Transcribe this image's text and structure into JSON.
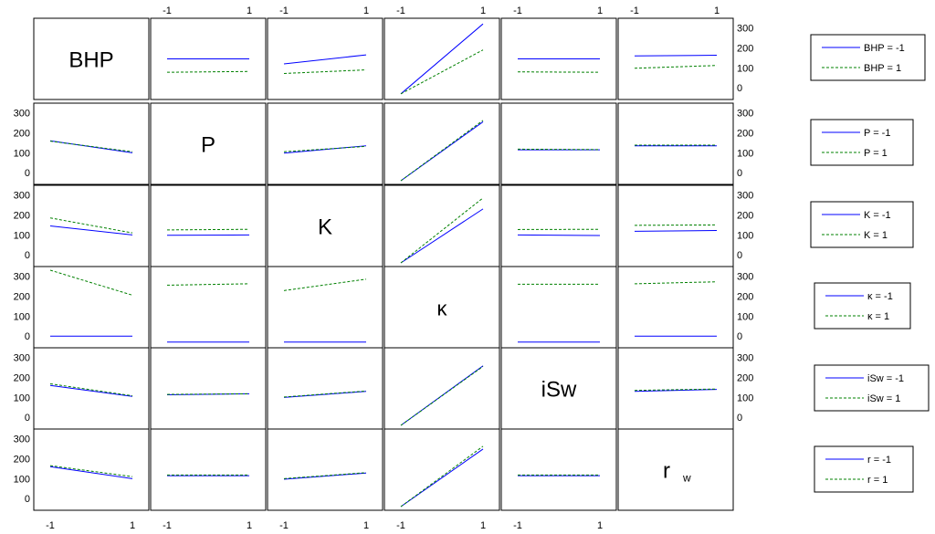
{
  "chart_data": {
    "type": "line",
    "title": "",
    "layout": "6x6 interaction plot matrix",
    "factors": [
      "BHP",
      "P",
      "K",
      "κ",
      "iSw",
      "r"
    ],
    "diagonal_labels": [
      {
        "main": "BHP",
        "sub": ""
      },
      {
        "main": "P",
        "sub": ""
      },
      {
        "main": "K",
        "sub": ""
      },
      {
        "main": "κ",
        "sub": ""
      },
      {
        "main": "iSw",
        "sub": ""
      },
      {
        "main": "r",
        "sub": "w"
      }
    ],
    "x_levels": [
      -1,
      1
    ],
    "x_tick_labels": [
      "-1",
      "1"
    ],
    "y_ticks": [
      0,
      100,
      200,
      300
    ],
    "ylim": [
      -40,
      330
    ],
    "grid": false,
    "series_styles": [
      {
        "level": -1,
        "color": "#0000ff",
        "dash": "solid"
      },
      {
        "level": 1,
        "color": "#008000",
        "dash": "dashed"
      }
    ],
    "legends": [
      {
        "row": 0,
        "entries": [
          "BHP = -1",
          "BHP = 1"
        ]
      },
      {
        "row": 1,
        "entries": [
          "P = -1",
          "P = 1"
        ]
      },
      {
        "row": 2,
        "entries": [
          "K = -1",
          "K = 1"
        ]
      },
      {
        "row": 3,
        "entries": [
          "κ = -1",
          "κ = 1"
        ]
      },
      {
        "row": 4,
        "entries": [
          "iSw = -1",
          "iSw = 1"
        ]
      },
      {
        "row": 5,
        "entries": [
          "r = -1",
          "r = 1"
        ]
      }
    ],
    "panels": [
      {
        "row": 0,
        "col": 1,
        "series": [
          {
            "level": -1,
            "values": [
              145,
              145
            ]
          },
          {
            "level": 1,
            "values": [
              78,
              82
            ]
          }
        ]
      },
      {
        "row": 0,
        "col": 2,
        "series": [
          {
            "level": -1,
            "values": [
              120,
              165
            ]
          },
          {
            "level": 1,
            "values": [
              72,
              90
            ]
          }
        ]
      },
      {
        "row": 0,
        "col": 3,
        "series": [
          {
            "level": -1,
            "values": [
              -30,
              320
            ]
          },
          {
            "level": 1,
            "values": [
              -30,
              190
            ]
          }
        ]
      },
      {
        "row": 0,
        "col": 4,
        "series": [
          {
            "level": -1,
            "values": [
              145,
              145
            ]
          },
          {
            "level": 1,
            "values": [
              80,
              78
            ]
          }
        ]
      },
      {
        "row": 0,
        "col": 5,
        "series": [
          {
            "level": -1,
            "values": [
              160,
              163
            ]
          },
          {
            "level": 1,
            "values": [
              98,
              112
            ]
          }
        ]
      },
      {
        "row": 1,
        "col": 0,
        "series": [
          {
            "level": -1,
            "values": [
              160,
              100
            ]
          },
          {
            "level": 1,
            "values": [
              158,
              105
            ]
          }
        ]
      },
      {
        "row": 1,
        "col": 2,
        "series": [
          {
            "level": -1,
            "values": [
              98,
              135
            ]
          },
          {
            "level": 1,
            "values": [
              105,
              132
            ]
          }
        ]
      },
      {
        "row": 1,
        "col": 3,
        "series": [
          {
            "level": -1,
            "values": [
              -40,
              255
            ]
          },
          {
            "level": 1,
            "values": [
              -40,
              262
            ]
          }
        ]
      },
      {
        "row": 1,
        "col": 4,
        "series": [
          {
            "level": -1,
            "values": [
              115,
              115
            ]
          },
          {
            "level": 1,
            "values": [
              118,
              116
            ]
          }
        ]
      },
      {
        "row": 1,
        "col": 5,
        "series": [
          {
            "level": -1,
            "values": [
              135,
              135
            ]
          },
          {
            "level": 1,
            "values": [
              138,
              138
            ]
          }
        ]
      },
      {
        "row": 2,
        "col": 0,
        "series": [
          {
            "level": -1,
            "values": [
              145,
              100
            ]
          },
          {
            "level": 1,
            "values": [
              185,
              110
            ]
          }
        ]
      },
      {
        "row": 2,
        "col": 1,
        "series": [
          {
            "level": -1,
            "values": [
              98,
              100
            ]
          },
          {
            "level": 1,
            "values": [
              125,
              128
            ]
          }
        ]
      },
      {
        "row": 2,
        "col": 3,
        "series": [
          {
            "level": -1,
            "values": [
              -40,
              230
            ]
          },
          {
            "level": 1,
            "values": [
              -40,
              285
            ]
          }
        ]
      },
      {
        "row": 2,
        "col": 4,
        "series": [
          {
            "level": -1,
            "values": [
              100,
              97
            ]
          },
          {
            "level": 1,
            "values": [
              127,
              128
            ]
          }
        ]
      },
      {
        "row": 2,
        "col": 5,
        "series": [
          {
            "level": -1,
            "values": [
              118,
              122
            ]
          },
          {
            "level": 1,
            "values": [
              148,
              150
            ]
          }
        ]
      },
      {
        "row": 3,
        "col": 0,
        "series": [
          {
            "level": -1,
            "values": [
              0,
              0
            ]
          },
          {
            "level": 1,
            "values": [
              330,
              205
            ]
          }
        ]
      },
      {
        "row": 3,
        "col": 1,
        "series": [
          {
            "level": -1,
            "values": [
              -30,
              -30
            ]
          },
          {
            "level": 1,
            "values": [
              255,
              262
            ]
          }
        ]
      },
      {
        "row": 3,
        "col": 2,
        "series": [
          {
            "level": -1,
            "values": [
              -30,
              -30
            ]
          },
          {
            "level": 1,
            "values": [
              228,
              285
            ]
          }
        ]
      },
      {
        "row": 3,
        "col": 4,
        "series": [
          {
            "level": -1,
            "values": [
              -30,
              -30
            ]
          },
          {
            "level": 1,
            "values": [
              260,
              260
            ]
          }
        ]
      },
      {
        "row": 3,
        "col": 5,
        "series": [
          {
            "level": -1,
            "values": [
              0,
              0
            ]
          },
          {
            "level": 1,
            "values": [
              262,
              272
            ]
          }
        ]
      },
      {
        "row": 4,
        "col": 0,
        "series": [
          {
            "level": -1,
            "values": [
              160,
              105
            ]
          },
          {
            "level": 1,
            "values": [
              168,
              108
            ]
          }
        ]
      },
      {
        "row": 4,
        "col": 1,
        "series": [
          {
            "level": -1,
            "values": [
              113,
              118
            ]
          },
          {
            "level": 1,
            "values": [
              115,
              118
            ]
          }
        ]
      },
      {
        "row": 4,
        "col": 2,
        "series": [
          {
            "level": -1,
            "values": [
              100,
              130
            ]
          },
          {
            "level": 1,
            "values": [
              102,
              132
            ]
          }
        ]
      },
      {
        "row": 4,
        "col": 3,
        "series": [
          {
            "level": -1,
            "values": [
              -40,
              258
            ]
          },
          {
            "level": 1,
            "values": [
              -40,
              255
            ]
          }
        ]
      },
      {
        "row": 4,
        "col": 5,
        "series": [
          {
            "level": -1,
            "values": [
              130,
              140
            ]
          },
          {
            "level": 1,
            "values": [
              135,
              142
            ]
          }
        ]
      },
      {
        "row": 5,
        "col": 0,
        "series": [
          {
            "level": -1,
            "values": [
              160,
              100
            ]
          },
          {
            "level": 1,
            "values": [
              165,
              110
            ]
          }
        ]
      },
      {
        "row": 5,
        "col": 1,
        "series": [
          {
            "level": -1,
            "values": [
              115,
              115
            ]
          },
          {
            "level": 1,
            "values": [
              118,
              118
            ]
          }
        ]
      },
      {
        "row": 5,
        "col": 2,
        "series": [
          {
            "level": -1,
            "values": [
              97,
              128
            ]
          },
          {
            "level": 1,
            "values": [
              100,
              130
            ]
          }
        ]
      },
      {
        "row": 5,
        "col": 3,
        "series": [
          {
            "level": -1,
            "values": [
              -40,
              248
            ]
          },
          {
            "level": 1,
            "values": [
              -40,
              262
            ]
          }
        ]
      },
      {
        "row": 5,
        "col": 4,
        "series": [
          {
            "level": -1,
            "values": [
              115,
              115
            ]
          },
          {
            "level": 1,
            "values": [
              118,
              118
            ]
          }
        ]
      }
    ]
  }
}
